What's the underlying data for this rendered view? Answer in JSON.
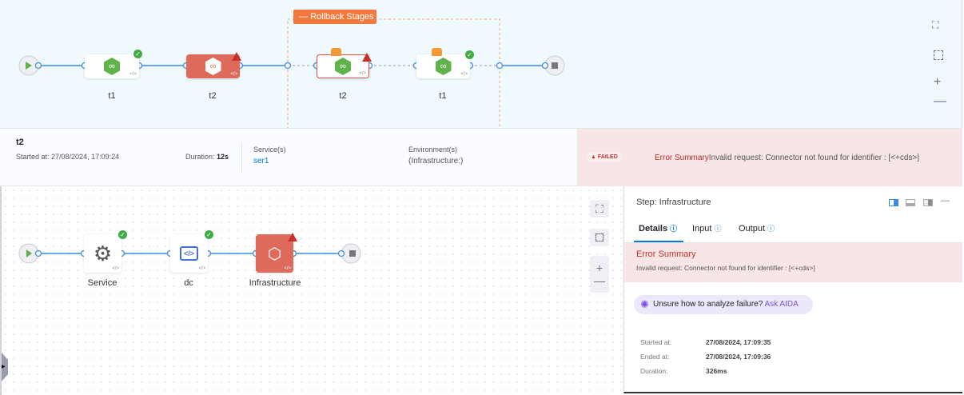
{
  "pipeline": {
    "rollback_label": "Rollback Stages",
    "stages": [
      {
        "name": "t1",
        "status": "success"
      },
      {
        "name": "t2",
        "status": "failed"
      },
      {
        "name": "t2",
        "status": "failed",
        "rollback": true
      },
      {
        "name": "t1",
        "status": "success",
        "rollback": true
      }
    ]
  },
  "stage_info": {
    "name": "t2",
    "started_label": "Started at: 27/08/2024, 17:09:24",
    "duration_label": "Duration: ",
    "duration_value": "12s",
    "services_label": "Service(s)",
    "services_value": "ser1",
    "env_label": "Environment(s)",
    "env_value": "(Infrastructure:)",
    "status": "FAILED",
    "error_title": "Error Summary",
    "error_message": "Invalid request: Connector not found for identifier : [<+cds>]"
  },
  "steps": [
    {
      "name": "Service",
      "icon": "gear-icon",
      "status": "success"
    },
    {
      "name": "dc",
      "icon": "script-icon",
      "status": "success"
    },
    {
      "name": "Infrastructure",
      "icon": "hexagons-icon",
      "status": "failed"
    }
  ],
  "panel": {
    "title": "Step: Infrastructure",
    "tabs": [
      "Details",
      "Input",
      "Output"
    ],
    "active_tab": "Details",
    "error_title": "Error Summary",
    "error_message": "Invalid request: Connector not found for identifier : [<+cds>]",
    "aida_text": "Unsure how to analyze failure? ",
    "aida_link": "Ask AIDA",
    "details": [
      {
        "label": "Started at:",
        "value": "27/08/2024, 17:09:35"
      },
      {
        "label": "Ended at:",
        "value": "27/08/2024, 17:09:36"
      },
      {
        "label": "Duration:",
        "value": "326ms"
      }
    ]
  },
  "colors": {
    "accent": "#0278d5",
    "failed": "#de6a5c",
    "success": "#42ab45",
    "rollback": "#f3783b",
    "aida": "#7b4fe0"
  }
}
